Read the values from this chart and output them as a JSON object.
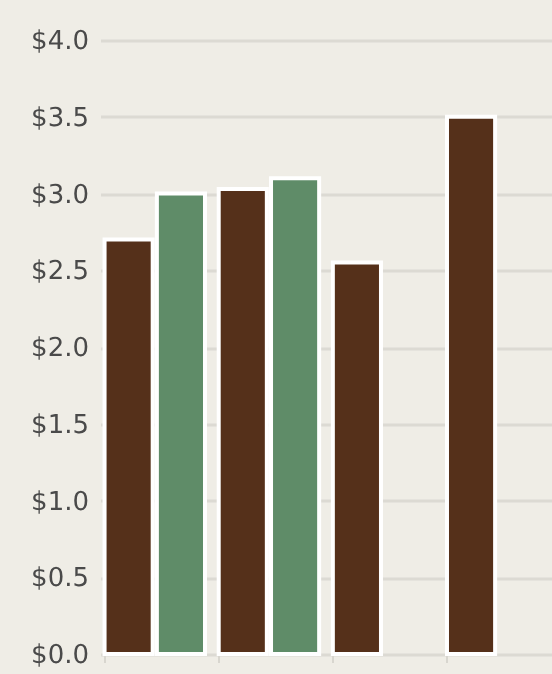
{
  "chart_data": {
    "type": "bar",
    "categories": [
      null,
      null,
      null,
      null
    ],
    "series": [
      {
        "color": "#55301a",
        "values": [
          2.7,
          3.03,
          2.55,
          3.5
        ]
      },
      {
        "color": "#5f8c68",
        "values": [
          3.0,
          3.1,
          null,
          null
        ]
      }
    ],
    "ylim": [
      0,
      4
    ],
    "yticks": [
      {
        "value": 0,
        "label": "$0.0"
      },
      {
        "value": 0.5,
        "label": "$0.5"
      },
      {
        "value": 1,
        "label": "$1.0"
      },
      {
        "value": 1.5,
        "label": "$1.5"
      },
      {
        "value": 2,
        "label": "$2.0"
      },
      {
        "value": 2.5,
        "label": "$2.5"
      },
      {
        "value": 3,
        "label": "$3.0"
      },
      {
        "value": 3.5,
        "label": "$3.5"
      },
      {
        "value": 4,
        "label": "$4.0"
      }
    ],
    "grid": "y"
  }
}
